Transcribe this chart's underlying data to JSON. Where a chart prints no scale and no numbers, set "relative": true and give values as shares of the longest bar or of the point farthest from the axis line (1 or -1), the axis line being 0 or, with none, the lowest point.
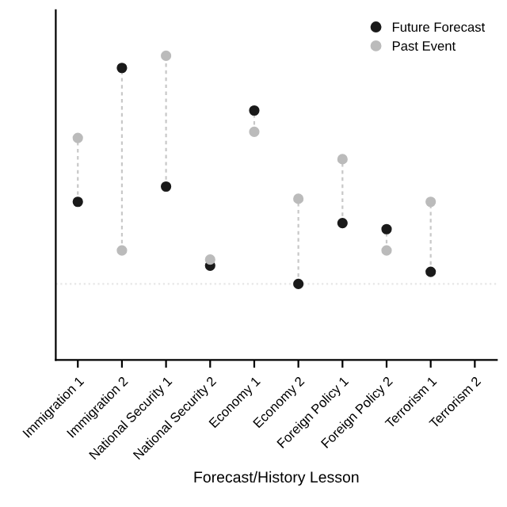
{
  "chart_data": {
    "type": "scatter",
    "xlabel": "Forecast/History Lesson",
    "relative": true,
    "marker": "circle",
    "legend": "top right",
    "grid": false,
    "categories": [
      "Immigration 1",
      "Immigration 2",
      "National Security 1",
      "National Security 2",
      "Economy 1",
      "Economy 2",
      "Foreign Policy 1",
      "Foreign Policy 2",
      "Terrorism 1",
      "Terrorism 2"
    ],
    "series": [
      {
        "name": "Future Forecast",
        "color": "#1a1a1a",
        "values": [
          0.52,
          0.96,
          0.57,
          0.31,
          0.82,
          0.25,
          0.45,
          0.43,
          0.29,
          null
        ]
      },
      {
        "name": "Past Event",
        "color": "#bbbbbb",
        "values": [
          0.73,
          0.36,
          1.0,
          0.33,
          0.75,
          0.53,
          0.66,
          0.36,
          0.52,
          null
        ]
      }
    ],
    "ref_lines": [
      {
        "axis": "y",
        "value": 0.25,
        "color": "#e6e6e6",
        "line_style": "dotted"
      }
    ]
  }
}
